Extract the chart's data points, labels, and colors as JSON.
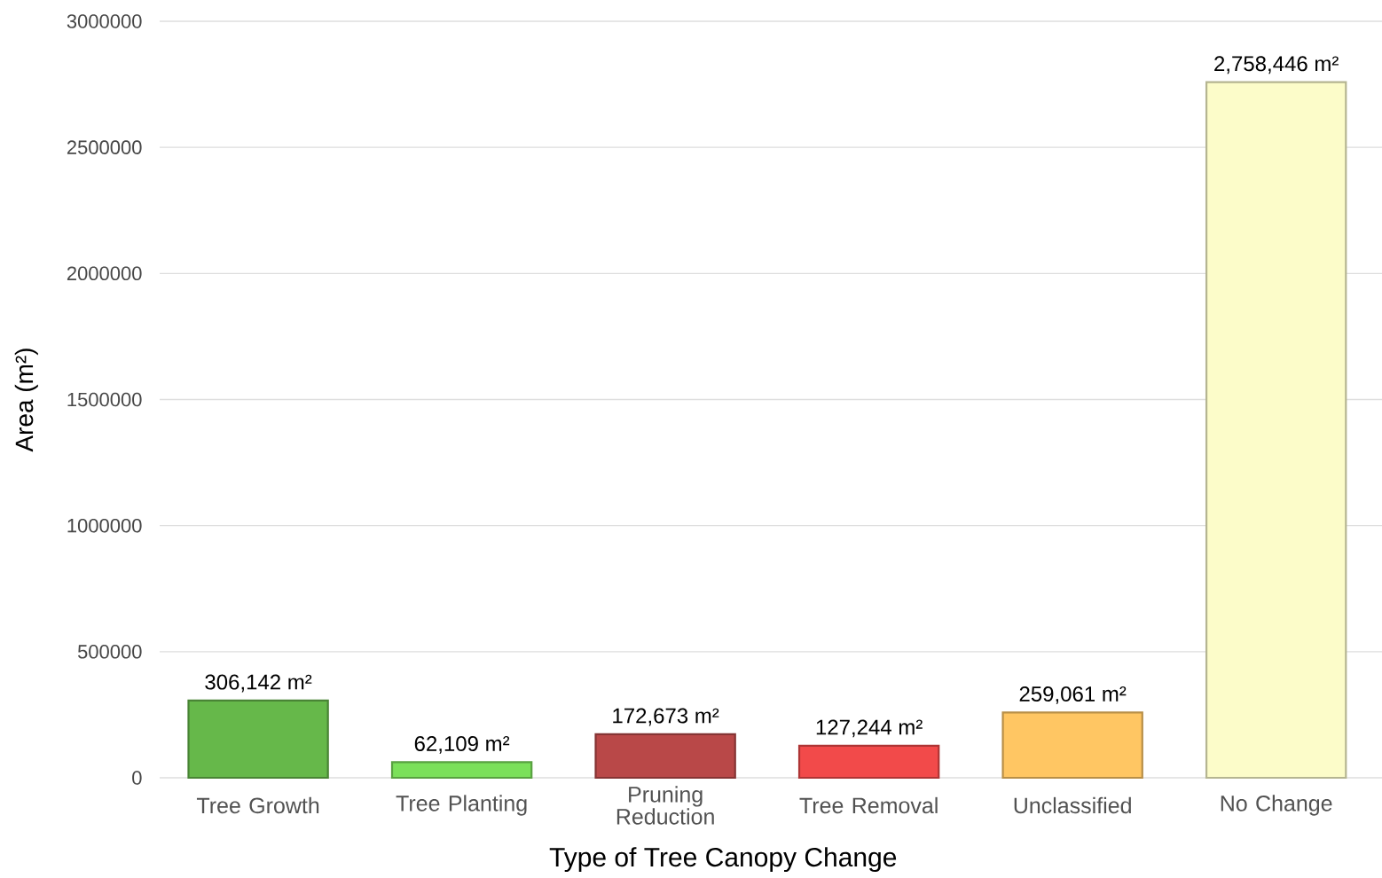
{
  "chart_data": {
    "type": "bar",
    "xlabel": "Type of Tree Canopy Change",
    "ylabel": "Area (m²)",
    "categories": [
      "Tree Growth",
      "Tree Planting",
      "Pruning Reduction",
      "Tree Removal",
      "Unclassified",
      "No Change"
    ],
    "values": [
      306142,
      62109,
      172673,
      127244,
      259061,
      2758446
    ],
    "colors": [
      "#66b84a",
      "#7be05a",
      "#b94848",
      "#f24a4a",
      "#ffc663",
      "#fcfcc9"
    ],
    "value_labels": [
      "306,142 m²",
      "62,109 m²",
      "172,673 m²",
      "127,244 m²",
      "259,061 m²",
      "2,758,446 m²"
    ],
    "ylim": [
      0,
      3000000
    ],
    "yticks": [
      0,
      500000,
      1000000,
      1500000,
      2000000,
      2500000,
      3000000
    ],
    "grid": "y"
  }
}
